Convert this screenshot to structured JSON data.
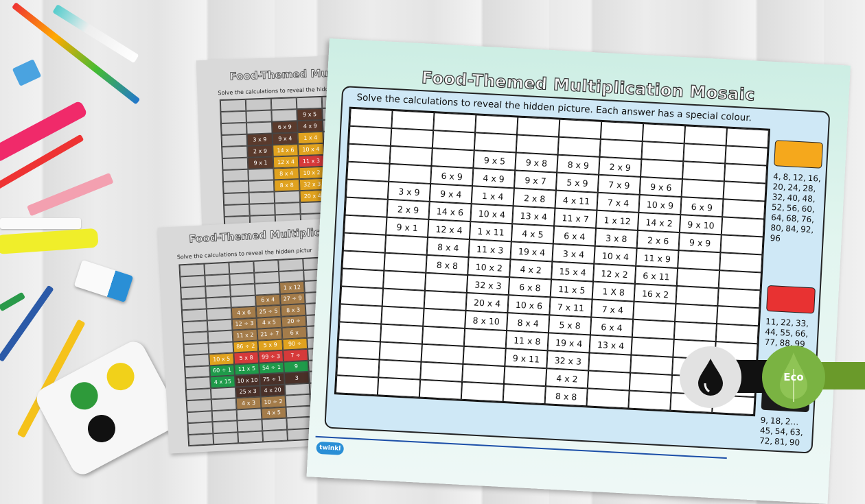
{
  "main_sheet": {
    "title": "Food-Themed Multiplication Mosaic",
    "instructions": "Solve the calculations to reveal the hidden picture. Each answer has a special colour.",
    "grid": [
      [
        "",
        "",
        "",
        "",
        "",
        "",
        "",
        "",
        "",
        ""
      ],
      [
        "",
        "",
        "",
        "",
        "",
        "",
        "",
        "",
        "",
        ""
      ],
      [
        "",
        "",
        "",
        "9 x 5",
        "9 x 8",
        "8 x 9",
        "2 x 9",
        "",
        "",
        ""
      ],
      [
        "",
        "",
        "6 x 9",
        "4 x 9",
        "9 x 7",
        "5 x 9",
        "7 x 9",
        "9 x 6",
        "",
        ""
      ],
      [
        "",
        "3 x 9",
        "9 x 4",
        "1 x 4",
        "2 x 8",
        "4 x 11",
        "7 x 4",
        "10 x 9",
        "6 x 9",
        ""
      ],
      [
        "",
        "2 x 9",
        "14 x 6",
        "10 x 4",
        "13 x 4",
        "11 x 7",
        "1 x 12",
        "14 x 2",
        "9 x 10",
        ""
      ],
      [
        "",
        "9 x 1",
        "12 x 4",
        "1 x 11",
        "4 x 5",
        "6 x 4",
        "3 x 8",
        "2 x 6",
        "9 x 9",
        ""
      ],
      [
        "",
        "",
        "8 x 4",
        "11 x 3",
        "19 x 4",
        "3 x 4",
        "10 x 4",
        "11 x 9",
        "",
        ""
      ],
      [
        "",
        "",
        "8 x 8",
        "10 x 2",
        "4 x 2",
        "15 x 4",
        "12 x 2",
        "6 x 11",
        "",
        ""
      ],
      [
        "",
        "",
        "",
        "32 x 3",
        "6 x 8",
        "11 x 5",
        "1 X 8",
        "16 x 2",
        "",
        ""
      ],
      [
        "",
        "",
        "",
        "20 x 4",
        "10 x 6",
        "7 x 11",
        "7 x 4",
        "",
        "",
        ""
      ],
      [
        "",
        "",
        "",
        "8 x 10",
        "8 x 4",
        "5 x 8",
        "6 x 4",
        "",
        "",
        ""
      ],
      [
        "",
        "",
        "",
        "",
        "11 x 8",
        "19 x 4",
        "13 x 4",
        "",
        "",
        ""
      ],
      [
        "",
        "",
        "",
        "",
        "9 x 11",
        "32 x 3",
        "",
        "",
        "",
        ""
      ],
      [
        "",
        "",
        "",
        "",
        "",
        "4 x 2",
        "",
        "",
        "",
        ""
      ],
      [
        "",
        "",
        "",
        "",
        "",
        "8 x 8",
        "",
        "",
        "",
        ""
      ]
    ],
    "legend": [
      {
        "color": "#f5a81c",
        "numbers": "4, 8, 12, 16, 20, 24, 28, 32, 40, 48, 52, 56, 60, 64, 68, 76, 80, 84, 92, 96"
      },
      {
        "color": "#e83232",
        "numbers": "11, 22, 33, 44, 55, 66, 77, 88, 99"
      },
      {
        "color": "#1a1a1a",
        "numbers": "9, 18, 2… 45, 54, 63, 72, 81, 90"
      }
    ],
    "logo": "twinkl"
  },
  "back_sheet_top": {
    "title": "Food-Themed Mul",
    "instructions": "Solve the calculations to reveal the hidd",
    "cells": [
      {
        "r": 1,
        "c": 3,
        "t": "9 x 5",
        "k": "#5a3a2c"
      },
      {
        "r": 2,
        "c": 2,
        "t": "6 x 9",
        "k": "#5a3a2c"
      },
      {
        "r": 2,
        "c": 3,
        "t": "4 x 9",
        "k": "#5a3a2c"
      },
      {
        "r": 3,
        "c": 1,
        "t": "3 x 9",
        "k": "#5a3a2c"
      },
      {
        "r": 3,
        "c": 2,
        "t": "9 x 4",
        "k": "#5a3a2c"
      },
      {
        "r": 3,
        "c": 3,
        "t": "1 x 4",
        "k": "#e0a21f"
      },
      {
        "r": 4,
        "c": 1,
        "t": "2 x 9",
        "k": "#5a3a2c"
      },
      {
        "r": 4,
        "c": 2,
        "t": "14 x 6",
        "k": "#e0a21f"
      },
      {
        "r": 4,
        "c": 3,
        "t": "10 x 4",
        "k": "#e0a21f"
      },
      {
        "r": 4,
        "c": 4,
        "t": "1 x 11",
        "k": "#d63a3a"
      },
      {
        "r": 5,
        "c": 1,
        "t": "9 x 1",
        "k": "#5a3a2c"
      },
      {
        "r": 5,
        "c": 2,
        "t": "12 x 4",
        "k": "#e0a21f"
      },
      {
        "r": 5,
        "c": 3,
        "t": "11 x 3",
        "k": "#d63a3a"
      },
      {
        "r": 6,
        "c": 2,
        "t": "8 x 4",
        "k": "#e0a21f"
      },
      {
        "r": 6,
        "c": 3,
        "t": "10 x 2",
        "k": "#e0a21f"
      },
      {
        "r": 7,
        "c": 2,
        "t": "8 x 8",
        "k": "#e0a21f"
      },
      {
        "r": 7,
        "c": 3,
        "t": "32 x 3",
        "k": "#e0a21f"
      },
      {
        "r": 8,
        "c": 3,
        "t": "20 x 4",
        "k": "#e0a21f"
      }
    ]
  },
  "back_sheet_bottom": {
    "title": "Food-Themed Multiplic",
    "instructions": "Solve the calculations to reveal the hidden pictur",
    "cells": [
      {
        "r": 2,
        "c": 4,
        "t": "1 x 12",
        "k": "#a47c4a"
      },
      {
        "r": 3,
        "c": 3,
        "t": "6 x 4",
        "k": "#a47c4a"
      },
      {
        "r": 3,
        "c": 4,
        "t": "27 ÷ 9",
        "k": "#a47c4a"
      },
      {
        "r": 4,
        "c": 2,
        "t": "4 x 6",
        "k": "#a47c4a"
      },
      {
        "r": 4,
        "c": 3,
        "t": "25 ÷ 5",
        "k": "#a47c4a"
      },
      {
        "r": 4,
        "c": 4,
        "t": "8 x 3",
        "k": "#a47c4a"
      },
      {
        "r": 5,
        "c": 2,
        "t": "12 ÷ 3",
        "k": "#a47c4a"
      },
      {
        "r": 5,
        "c": 3,
        "t": "4 x 5",
        "k": "#a47c4a"
      },
      {
        "r": 5,
        "c": 4,
        "t": "20 ÷",
        "k": "#a47c4a"
      },
      {
        "r": 6,
        "c": 2,
        "t": "11 x 2",
        "k": "#a47c4a"
      },
      {
        "r": 6,
        "c": 3,
        "t": "21 ÷ 7",
        "k": "#a47c4a"
      },
      {
        "r": 6,
        "c": 4,
        "t": "6 x",
        "k": "#a47c4a"
      },
      {
        "r": 7,
        "c": 2,
        "t": "86 ÷ 2",
        "k": "#e0a21f"
      },
      {
        "r": 7,
        "c": 3,
        "t": "5 x 9",
        "k": "#e0a21f"
      },
      {
        "r": 7,
        "c": 4,
        "t": "90 ÷",
        "k": "#e0a21f"
      },
      {
        "r": 8,
        "c": 1,
        "t": "10 x 5",
        "k": "#e0a21f"
      },
      {
        "r": 8,
        "c": 2,
        "t": "5 x 8",
        "k": "#d63a3a"
      },
      {
        "r": 8,
        "c": 3,
        "t": "99 ÷ 3",
        "k": "#d63a3a"
      },
      {
        "r": 8,
        "c": 4,
        "t": "7 ÷",
        "k": "#d63a3a"
      },
      {
        "r": 9,
        "c": 1,
        "t": "60 ÷ 1",
        "k": "#1f9a4a"
      },
      {
        "r": 9,
        "c": 2,
        "t": "11 x 5",
        "k": "#1f9a4a"
      },
      {
        "r": 9,
        "c": 3,
        "t": "54 ÷ 1",
        "k": "#1f9a4a"
      },
      {
        "r": 9,
        "c": 4,
        "t": "9",
        "k": "#1f9a4a"
      },
      {
        "r": 10,
        "c": 1,
        "t": "4 x 15",
        "k": "#1f9a4a"
      },
      {
        "r": 10,
        "c": 2,
        "t": "10 x 10",
        "k": "#4a3028"
      },
      {
        "r": 10,
        "c": 3,
        "t": "75 ÷ 1",
        "k": "#4a3028"
      },
      {
        "r": 10,
        "c": 4,
        "t": "3",
        "k": "#4a3028"
      },
      {
        "r": 11,
        "c": 2,
        "t": "25 x 3",
        "k": "#4a3028"
      },
      {
        "r": 11,
        "c": 3,
        "t": "4 x 20",
        "k": "#4a3028"
      },
      {
        "r": 12,
        "c": 2,
        "t": "4 x 3",
        "k": "#a47c4a"
      },
      {
        "r": 12,
        "c": 3,
        "t": "10 ÷ 2",
        "k": "#a47c4a"
      },
      {
        "r": 13,
        "c": 3,
        "t": "4 x 5",
        "k": "#a47c4a"
      }
    ]
  },
  "badges": {
    "eco_label": "Eco",
    "eco_color": "#7ab342",
    "ink_icon": "ink-drop-icon"
  }
}
